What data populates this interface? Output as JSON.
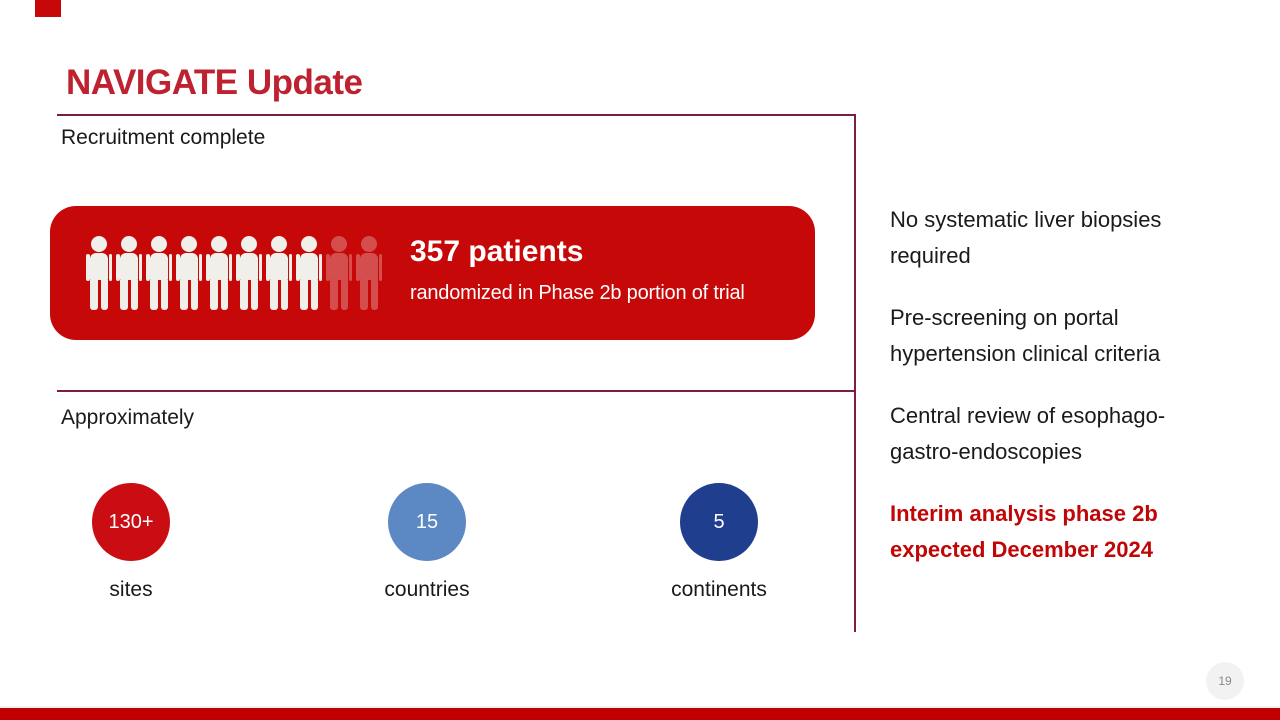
{
  "slide": {
    "title": "NAVIGATE Update",
    "page_number": "19"
  },
  "left_panel": {
    "recruitment_heading": "Recruitment complete",
    "banner": {
      "headline": "357 patients",
      "subline": "randomized in Phase 2b portion of trial",
      "icons": {
        "icon_name": "person-icon",
        "total": 10,
        "solid": 8,
        "faded": 2
      }
    },
    "approx_heading": "Approximately",
    "stats": [
      {
        "value": "130+",
        "label": "sites",
        "color": "#C90D13"
      },
      {
        "value": "15",
        "label": "countries",
        "color": "#5C88C4"
      },
      {
        "value": "5",
        "label": "continents",
        "color": "#1F3E8E"
      }
    ]
  },
  "right_panel": {
    "bullets": [
      {
        "text": "No systematic liver biopsies required",
        "emphasis": false
      },
      {
        "text": "Pre-screening on portal hypertension clinical criteria",
        "emphasis": false
      },
      {
        "text": "Central review of esophago-gastro-endoscopies",
        "emphasis": false
      },
      {
        "text": "Interim analysis phase 2b expected December 2024",
        "emphasis": true
      }
    ]
  },
  "colors": {
    "banner_red": "#C70808",
    "title_red": "#BE2130",
    "emphasis_red": "#C00606",
    "divider_maroon": "#7D1C45",
    "bottom_bar_red": "#C00000",
    "person_icon_white": "#F1EFEA",
    "page_badge_bg": "#F2F2F2"
  }
}
